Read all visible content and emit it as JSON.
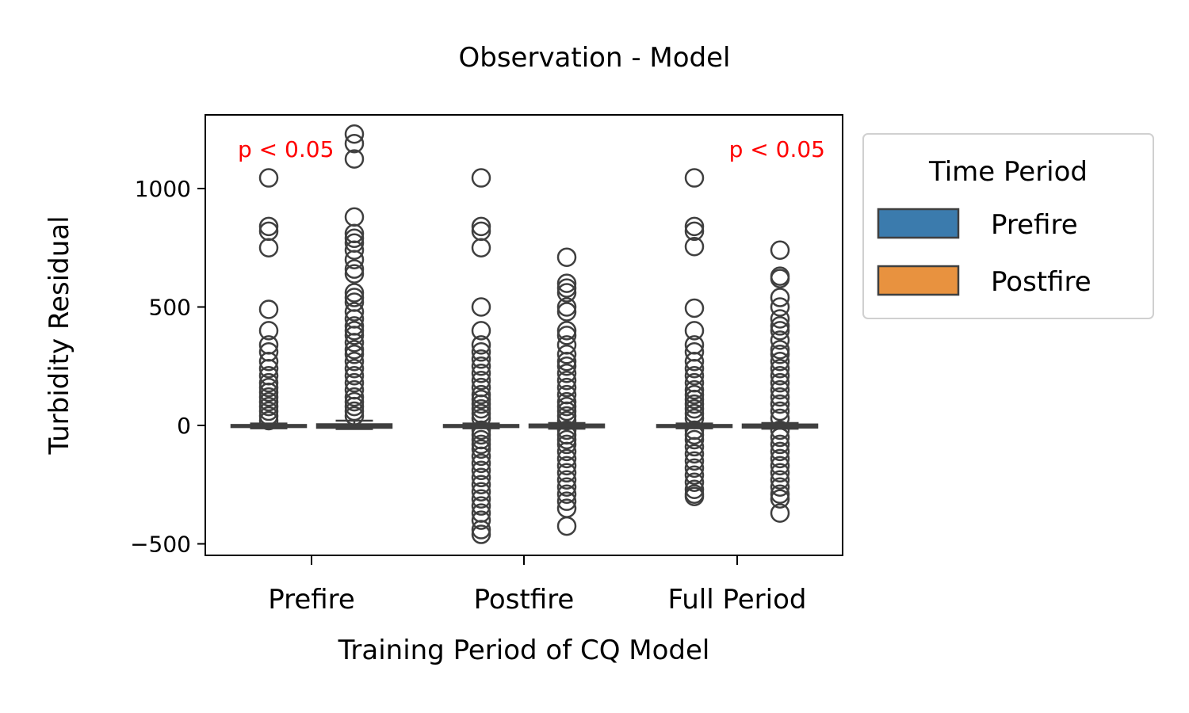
{
  "chart_data": {
    "type": "box",
    "title": "Observation - Model",
    "xlabel": "Training Period of CQ Model",
    "ylabel": "Turbidity Residual",
    "categories": [
      "Prefire",
      "Postfire",
      "Full Period"
    ],
    "yticks": [
      1000,
      500,
      0,
      -500
    ],
    "ytick_labels": [
      "1000",
      "500",
      "0",
      "−500"
    ],
    "ylim": [
      -545,
      1310
    ],
    "grid": false,
    "legend": {
      "title": "Time Period",
      "placement": "outside right",
      "entries": [
        "Prefire",
        "Postfire"
      ]
    },
    "series": [
      {
        "name": "Prefire",
        "color": "#3b7bad",
        "boxes": [
          {
            "q1": -7,
            "median": -3,
            "q3": 2,
            "whisker_low": -12,
            "whisker_high": 8,
            "outliers": [
              1045,
              840,
              820,
              750,
              490,
              400,
              340,
              310,
              270,
              240,
              210,
              180,
              160,
              140,
              120,
              100,
              80,
              60,
              40,
              20
            ]
          },
          {
            "q1": -7,
            "median": -3,
            "q3": 2,
            "whisker_low": -12,
            "whisker_high": 8,
            "outliers": [
              1045,
              840,
              820,
              750,
              500,
              400,
              340,
              310,
              280,
              250,
              220,
              190,
              160,
              130,
              110,
              90,
              70,
              50,
              30,
              -20,
              -40,
              -60,
              -80,
              -100,
              -130,
              -160,
              -190,
              -220,
              -250,
              -280,
              -310,
              -340,
              -370,
              -400,
              -440,
              -460
            ]
          },
          {
            "q1": -7,
            "median": -3,
            "q3": 2,
            "whisker_low": -12,
            "whisker_high": 8,
            "outliers": [
              1045,
              840,
              820,
              755,
              495,
              400,
              340,
              310,
              270,
              240,
              210,
              180,
              150,
              130,
              110,
              90,
              70,
              50,
              30,
              -20,
              -40,
              -60,
              -90,
              -120,
              -150,
              -180,
              -210,
              -240,
              -270,
              -290,
              -300
            ]
          }
        ]
      },
      {
        "name": "Postfire",
        "color": "#e8923f",
        "boxes": [
          {
            "q1": -10,
            "median": -3,
            "q3": 5,
            "whisker_low": -15,
            "whisker_high": 20,
            "outliers": [
              1230,
              1190,
              1125,
              880,
              810,
              790,
              770,
              740,
              700,
              660,
              640,
              560,
              540,
              520,
              480,
              450,
              420,
              400,
              380,
              350,
              320,
              300,
              270,
              240,
              210,
              180,
              150,
              120,
              100,
              80,
              60,
              40
            ]
          },
          {
            "q1": -8,
            "median": -2,
            "q3": 4,
            "whisker_low": -14,
            "whisker_high": 10,
            "outliers": [
              710,
              600,
              580,
              560,
              500,
              480,
              400,
              380,
              340,
              300,
              270,
              250,
              220,
              190,
              160,
              130,
              100,
              80,
              60,
              40,
              20,
              -20,
              -40,
              -60,
              -80,
              -110,
              -140,
              -170,
              -200,
              -230,
              -260,
              -290,
              -320,
              -350,
              -425
            ]
          },
          {
            "q1": -9,
            "median": -3,
            "q3": 4,
            "whisker_low": -14,
            "whisker_high": 10,
            "outliers": [
              740,
              630,
              620,
              540,
              500,
              450,
              420,
              400,
              360,
              320,
              300,
              270,
              240,
              210,
              180,
              150,
              120,
              90,
              60,
              30,
              -20,
              -50,
              -80,
              -110,
              -140,
              -170,
              -200,
              -230,
              -260,
              -290,
              -310,
              -370
            ]
          }
        ]
      }
    ],
    "annotations": [
      {
        "text": "p < 0.05",
        "category": "Prefire",
        "color": "#ff0000"
      },
      {
        "text": "p < 0.05",
        "category": "Full Period",
        "color": "#ff0000"
      }
    ]
  }
}
